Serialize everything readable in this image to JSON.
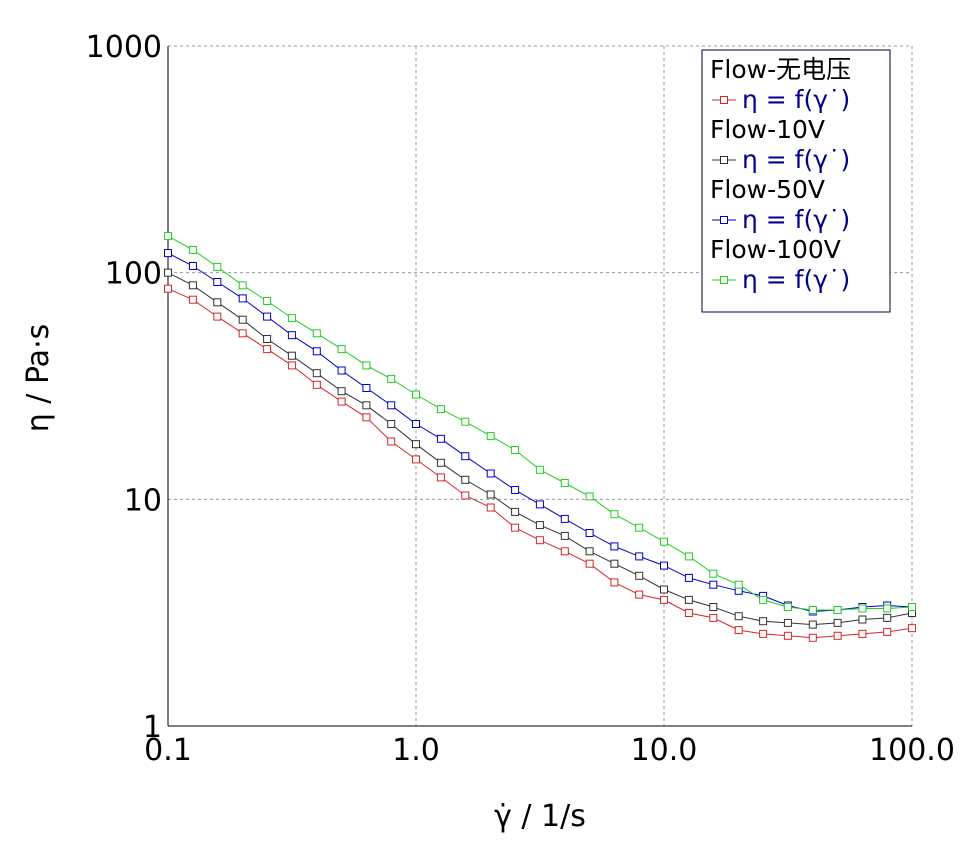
{
  "chart_data": {
    "type": "line",
    "xlabel": "γ̇ / 1/s",
    "ylabel": "η / Pa·s",
    "x_scale": "log",
    "y_scale": "log",
    "xlim": [
      0.1,
      100.0
    ],
    "ylim": [
      1,
      1000
    ],
    "x_ticks": [
      "0.1",
      "1.0",
      "10.0",
      "100.0"
    ],
    "y_ticks": [
      "1",
      "10",
      "100",
      "1000"
    ],
    "grid": true,
    "legend_position": "top-right",
    "x": [
      0.1,
      0.126,
      0.158,
      0.2,
      0.251,
      0.316,
      0.398,
      0.501,
      0.631,
      0.794,
      1.0,
      1.26,
      1.58,
      2.0,
      2.51,
      3.16,
      3.98,
      5.01,
      6.31,
      7.94,
      10.0,
      12.6,
      15.8,
      20.0,
      25.1,
      31.6,
      39.8,
      50.1,
      63.1,
      79.4,
      100.0
    ],
    "series": [
      {
        "name": "Flow-无电压",
        "entry": "η = f(γ˙)",
        "color": "#d62728",
        "values": [
          85,
          76,
          64,
          54,
          46,
          39,
          32,
          27,
          23,
          18,
          15,
          12.5,
          10.4,
          9.2,
          7.5,
          6.6,
          5.9,
          5.2,
          4.3,
          3.8,
          3.6,
          3.15,
          3.0,
          2.65,
          2.55,
          2.5,
          2.45,
          2.5,
          2.55,
          2.6,
          2.7
        ]
      },
      {
        "name": "Flow-10V",
        "entry": "η = f(γ˙)",
        "color": "#333333",
        "values": [
          100,
          88,
          74,
          62,
          51,
          43,
          36,
          30,
          26,
          21.5,
          17.5,
          14.5,
          12.2,
          10.5,
          8.8,
          7.7,
          6.9,
          5.9,
          5.2,
          4.6,
          4.0,
          3.6,
          3.35,
          3.05,
          2.9,
          2.85,
          2.8,
          2.85,
          2.95,
          3.0,
          3.15
        ]
      },
      {
        "name": "Flow-50V",
        "entry": "η = f(γ˙)",
        "color": "#0000cd",
        "values": [
          122,
          107,
          91,
          77,
          64,
          53,
          45,
          37,
          31,
          26,
          21.5,
          18.5,
          15.5,
          13,
          11,
          9.5,
          8.2,
          7.1,
          6.2,
          5.6,
          5.1,
          4.5,
          4.2,
          3.95,
          3.75,
          3.4,
          3.2,
          3.25,
          3.35,
          3.4,
          3.35
        ]
      },
      {
        "name": "Flow-100V",
        "entry": "η = f(γ˙)",
        "color": "#22cc22",
        "values": [
          145,
          126,
          106,
          88,
          75,
          63,
          54,
          46,
          39,
          34,
          29,
          25,
          22,
          19,
          16.5,
          13.5,
          11.8,
          10.3,
          8.6,
          7.5,
          6.5,
          5.6,
          4.7,
          4.2,
          3.6,
          3.35,
          3.25,
          3.25,
          3.3,
          3.3,
          3.35
        ]
      }
    ]
  },
  "colors": {
    "grid": "#999999",
    "axis": "#000000",
    "legend_border": "#000033"
  }
}
